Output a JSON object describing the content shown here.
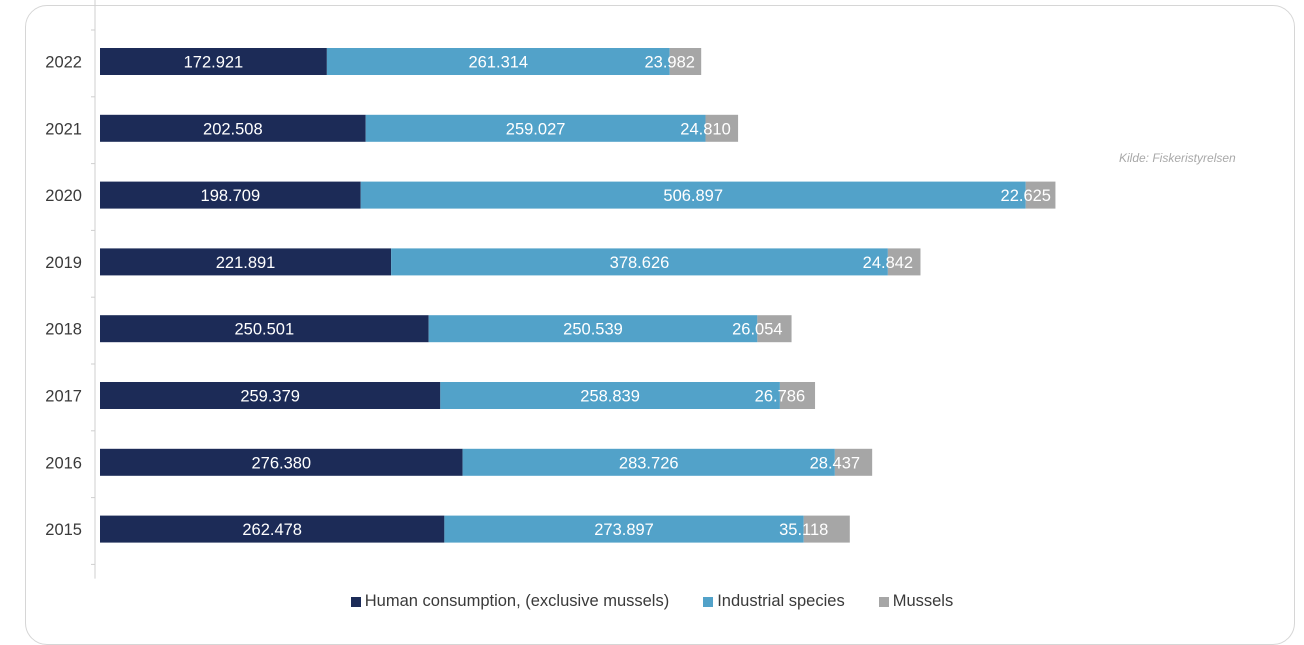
{
  "source": "Kilde: Fiskeristyrelsen",
  "colors": {
    "human": "#1c2b57",
    "industrial": "#52a2c9",
    "mussels": "#a6a6a6"
  },
  "chart_data": {
    "type": "bar",
    "orientation": "horizontal",
    "stacked": true,
    "categories": [
      "2022",
      "2021",
      "2020",
      "2019",
      "2018",
      "2017",
      "2016",
      "2015"
    ],
    "series": [
      {
        "name": "Human consumption, (exclusive mussels)",
        "values": [
          172921,
          202508,
          198709,
          221891,
          250501,
          259379,
          276380,
          262478
        ],
        "labels": [
          "172.921",
          "202.508",
          "198.709",
          "221.891",
          "250.501",
          "259.379",
          "276.380",
          "262.478"
        ]
      },
      {
        "name": "Industrial species",
        "values": [
          261314,
          259027,
          506897,
          378626,
          250539,
          258839,
          283726,
          273897
        ],
        "labels": [
          "261.314",
          "259.027",
          "506.897",
          "378.626",
          "250.539",
          "258.839",
          "283.726",
          "273.897"
        ]
      },
      {
        "name": "Mussels",
        "values": [
          23982,
          24810,
          22625,
          24842,
          26054,
          26786,
          28437,
          35118
        ],
        "labels": [
          "23.982",
          "24.810",
          "22.625",
          "24.842",
          "26.054",
          "26.786",
          "28.437",
          "35.118"
        ]
      }
    ],
    "legend_position": "bottom",
    "grid": false
  }
}
